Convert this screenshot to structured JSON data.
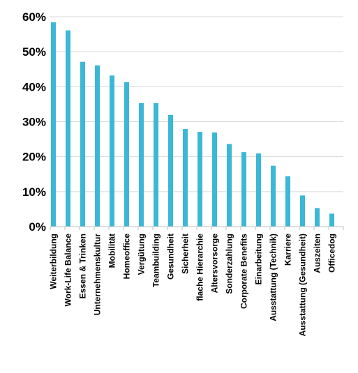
{
  "chart_data": {
    "type": "bar",
    "title": "",
    "xlabel": "",
    "ylabel": "",
    "ylim": [
      0,
      60
    ],
    "yticks": [
      "0%",
      "10%",
      "20%",
      "30%",
      "40%",
      "50%",
      "60%"
    ],
    "grid": true,
    "legend": "none",
    "bar_color": "#3bb8d6",
    "categories": [
      "Weiterbildung",
      "Work-Life Balance",
      "Essen & Trinken",
      "Unternehmenskultur",
      "Mobilität",
      "Homeoffice",
      "Vergütung",
      "Teambuilding",
      "Gesundheit",
      "Sicherheit",
      "flache Hierarchie",
      "Altersvorsorge",
      "Sonderzahlung",
      "Corporate Benefits",
      "Einarbeitung",
      "Ausstattung (Technik)",
      "Karriere",
      "Ausstattung (Gesundheit)",
      "Auszeiten",
      "Officedog"
    ],
    "values": [
      58.4,
      56.1,
      47.1,
      46.1,
      43.2,
      41.3,
      35.3,
      35.3,
      31.9,
      27.9,
      27.1,
      26.9,
      23.6,
      21.3,
      20.9,
      17.4,
      14.4,
      8.9,
      5.3,
      3.7
    ]
  }
}
